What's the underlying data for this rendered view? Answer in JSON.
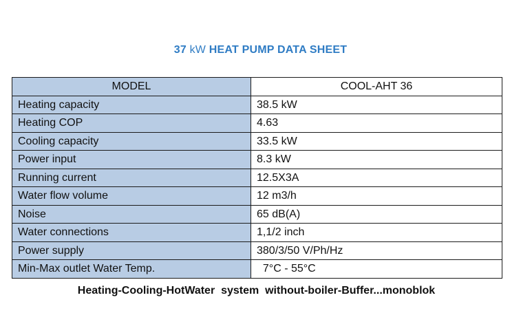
{
  "title": {
    "number": "37",
    "unit": "kW",
    "text": "HEAT PUMP DATA SHEET"
  },
  "table": {
    "header": {
      "label": "MODEL",
      "value": "COOL-AHT  36"
    },
    "rows": [
      {
        "label": "Heating capacity",
        "value": "38.5 kW"
      },
      {
        "label": "Heating COP",
        "value": "4.63"
      },
      {
        "label": "Cooling capacity",
        "value": "33.5 kW"
      },
      {
        "label": "Power input",
        "value": "8.3 kW"
      },
      {
        "label": "Running current",
        "value": "12.5X3A"
      },
      {
        "label": "Water flow volume",
        "value": "12 m3/h"
      },
      {
        "label": "Noise",
        "value": "65 dB(A)"
      },
      {
        "label": "Water connections",
        "value": "1,1/2 inch"
      },
      {
        "label": "Power supply",
        "value": "380/3/50  V/Ph/Hz"
      },
      {
        "label": "Min-Max  outlet Water Temp.",
        "value": "  7°C - 55°C"
      }
    ]
  },
  "footer": "Heating-Cooling-HotWater  system  without-boiler-Buffer...monoblok"
}
